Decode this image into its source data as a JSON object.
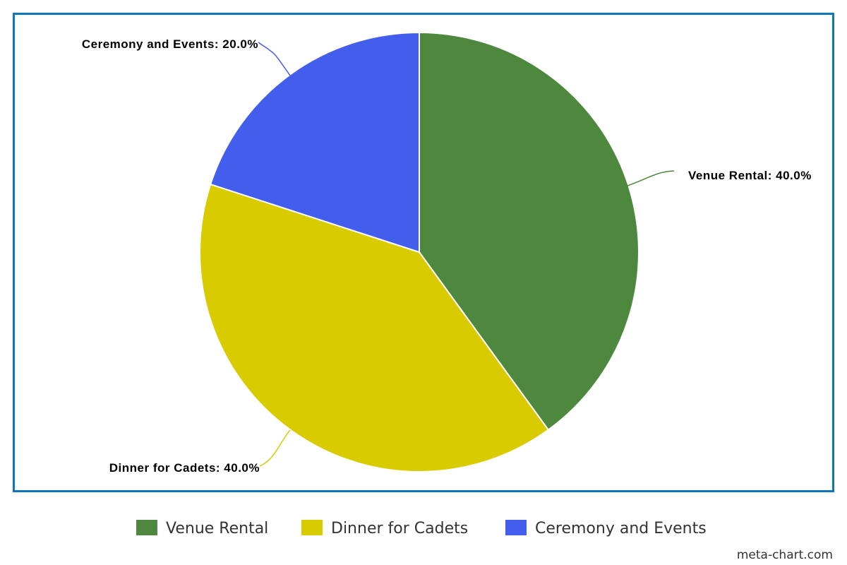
{
  "chart_data": {
    "type": "pie",
    "categories": [
      "Venue Rental",
      "Dinner for Cadets",
      "Ceremony and Events"
    ],
    "values": [
      40.0,
      40.0,
      20.0
    ],
    "slice_labels": [
      "Venue Rental: 40.0%",
      "Dinner for Cadets: 40.0%",
      "Ceremony and Events: 20.0%"
    ],
    "colors": [
      "#4e873e",
      "#d8cb00",
      "#435eec"
    ],
    "legend": {
      "placement": "bottom",
      "entries": [
        "Venue Rental",
        "Dinner for Cadets",
        "Ceremony and Events"
      ]
    },
    "frame_color": "#0f75bc"
  },
  "footer": {
    "credit": "meta-chart.com"
  }
}
